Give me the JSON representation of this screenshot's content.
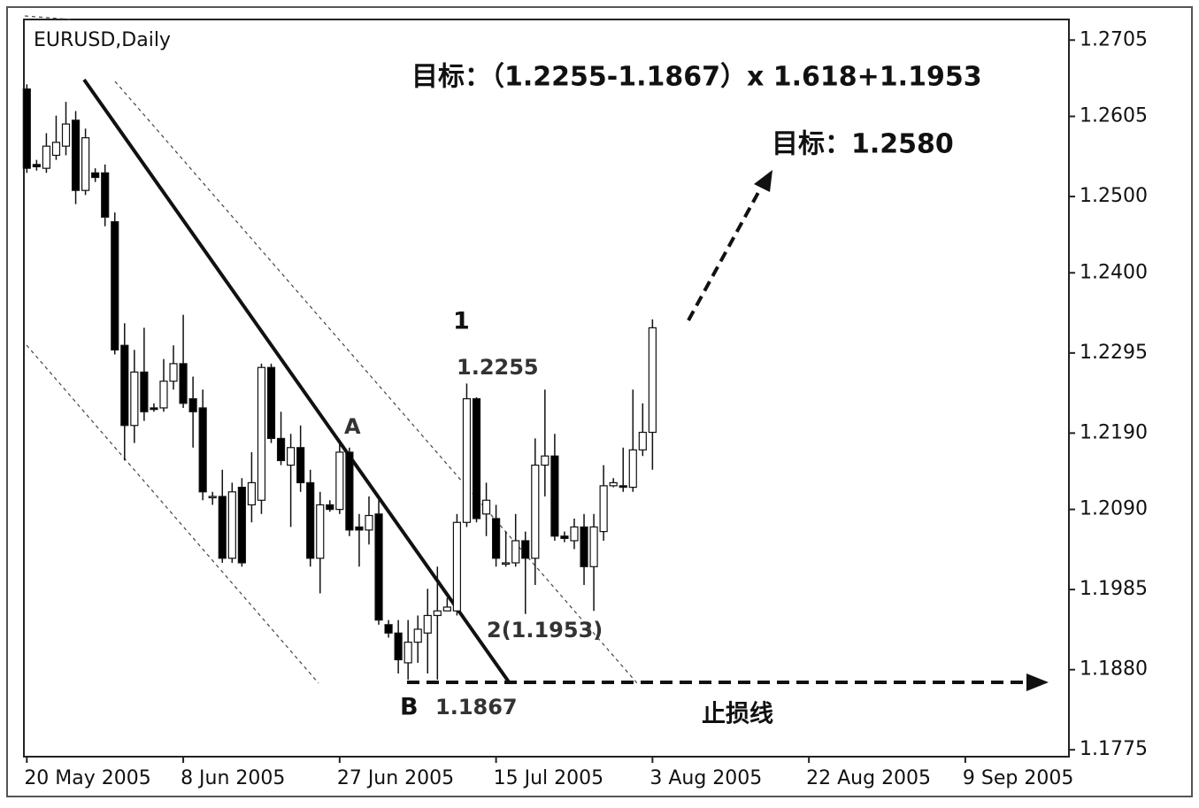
{
  "chart_data": {
    "type": "candlestick",
    "title": "EURUSD,Daily",
    "open": [
      1.2641,
      1.2542,
      1.2537,
      1.2554,
      1.2566,
      1.26,
      1.2508,
      1.2531,
      1.2531,
      1.2467,
      1.2305,
      1.22,
      1.227,
      1.2223,
      1.2223,
      1.2258,
      1.2281,
      1.2235,
      1.2223,
      1.2107,
      1.2107,
      1.2026,
      1.2119,
      1.2096,
      1.2102,
      1.2276,
      1.2183,
      1.2148,
      1.2171,
      1.2125,
      1.2026,
      1.2096,
      1.209,
      1.2165,
      1.2067,
      1.2063,
      1.2084,
      1.1939,
      1.1928,
      1.1889,
      1.1916,
      1.1928,
      1.1951,
      1.1957,
      1.1957,
      1.2073,
      1.2235,
      1.2084,
      1.2078,
      1.202,
      1.202,
      1.2049,
      1.2026,
      1.2148,
      1.216,
      1.2055,
      1.2049,
      1.2067,
      1.2015,
      1.2061,
      1.2121,
      1.2121,
      1.2119,
      1.2168,
      1.2191
    ],
    "high": [
      1.2647,
      1.2548,
      1.2583,
      1.2606,
      1.2624,
      1.2612,
      1.2589,
      1.2537,
      1.2542,
      1.2479,
      1.2334,
      1.2299,
      1.2328,
      1.2229,
      1.2287,
      1.2305,
      1.2345,
      1.2264,
      1.2247,
      1.2113,
      1.2142,
      1.2125,
      1.2131,
      1.2165,
      1.2281,
      1.2281,
      1.2218,
      1.2189,
      1.22,
      1.2142,
      1.2113,
      1.2102,
      1.2177,
      1.2171,
      1.2084,
      1.2107,
      1.2102,
      1.1945,
      1.1945,
      1.1945,
      1.1951,
      1.1986,
      1.2015,
      1.1974,
      1.2084,
      1.2255,
      1.2237,
      1.2125,
      1.2096,
      1.2061,
      1.2084,
      1.2061,
      1.2183,
      1.2247,
      1.2189,
      1.2061,
      1.2078,
      1.2084,
      1.2084,
      1.2148,
      1.2131,
      1.2171,
      1.2247,
      1.2229,
      1.2339
    ],
    "low": [
      1.2531,
      1.2534,
      1.2531,
      1.2548,
      1.2554,
      1.249,
      1.2502,
      1.2519,
      1.2461,
      1.2293,
      1.2154,
      1.2177,
      1.2206,
      1.2218,
      1.2218,
      1.2247,
      1.2223,
      1.2171,
      1.2102,
      1.2096,
      1.202,
      1.202,
      1.2015,
      1.2073,
      1.2084,
      1.2177,
      1.2148,
      1.2067,
      1.2113,
      1.2015,
      1.198,
      1.2087,
      1.2084,
      1.2055,
      1.2015,
      1.2044,
      1.1939,
      1.1922,
      1.1875,
      1.1867,
      1.1889,
      1.1875,
      1.1867,
      1.1957,
      1.1951,
      1.2067,
      1.2073,
      1.2055,
      1.2015,
      1.2015,
      1.2015,
      1.1953,
      1.1991,
      1.2107,
      1.2049,
      1.2047,
      1.2038,
      1.1991,
      1.1957,
      1.2049,
      1.2119,
      1.2113,
      1.2113,
      1.216,
      1.2142
    ],
    "close": [
      1.2537,
      1.2539,
      1.2566,
      1.2571,
      1.2595,
      1.2508,
      1.2577,
      1.2525,
      1.2473,
      1.2299,
      1.22,
      1.227,
      1.2218,
      1.2221,
      1.2258,
      1.2281,
      1.2229,
      1.2218,
      1.2113,
      1.2107,
      1.2026,
      1.2113,
      1.202,
      1.2125,
      1.2276,
      1.2183,
      1.2154,
      1.2171,
      1.2125,
      1.2026,
      1.2096,
      1.209,
      1.2165,
      1.2063,
      1.2063,
      1.2082,
      1.1945,
      1.1928,
      1.1893,
      1.1916,
      1.1933,
      1.1951,
      1.1957,
      1.1962,
      1.2073,
      1.2235,
      1.2078,
      1.2102,
      1.2026,
      1.202,
      1.2049,
      1.2026,
      1.2148,
      1.216,
      1.2055,
      1.2052,
      1.2067,
      1.2015,
      1.2067,
      1.2121,
      1.2125,
      1.2119,
      1.2168,
      1.2191,
      1.2328
    ],
    "up_color": "#ffffff",
    "down_color": "#000000",
    "ylim": [
      1.1766,
      1.2732
    ],
    "yticks": [
      1.2705,
      1.2605,
      {
        "value": 1.25,
        "label": "1.2500"
      },
      {
        "value": 1.24,
        "label": "1.2400"
      },
      1.2295,
      {
        "value": 1.219,
        "label": "1.2190"
      },
      {
        "value": 1.209,
        "label": "1.2090"
      },
      1.1985,
      {
        "value": 1.188,
        "label": "1.1880"
      },
      1.1775
    ],
    "xlim": [
      -0.3,
      106.6
    ],
    "xticks": [
      {
        "value": 0,
        "label": "20 May 2005"
      },
      {
        "value": 16,
        "label": "8 Jun 2005"
      },
      {
        "value": 32,
        "label": "27 Jun 2005"
      },
      {
        "value": 48,
        "label": "15 Jul 2005"
      },
      {
        "value": 64,
        "label": "3 Aug 2005"
      },
      {
        "value": 80,
        "label": "22 Aug 2005"
      },
      {
        "value": 96,
        "label": "9 Sep 2005"
      }
    ],
    "annotations": [
      "目标：（1.2255-1.1867）x 1.618+1.1953",
      "目标：1.2580",
      "1",
      "1.2255",
      "A",
      "B",
      "1.1867",
      "2(1.1953)",
      "止损线"
    ]
  }
}
